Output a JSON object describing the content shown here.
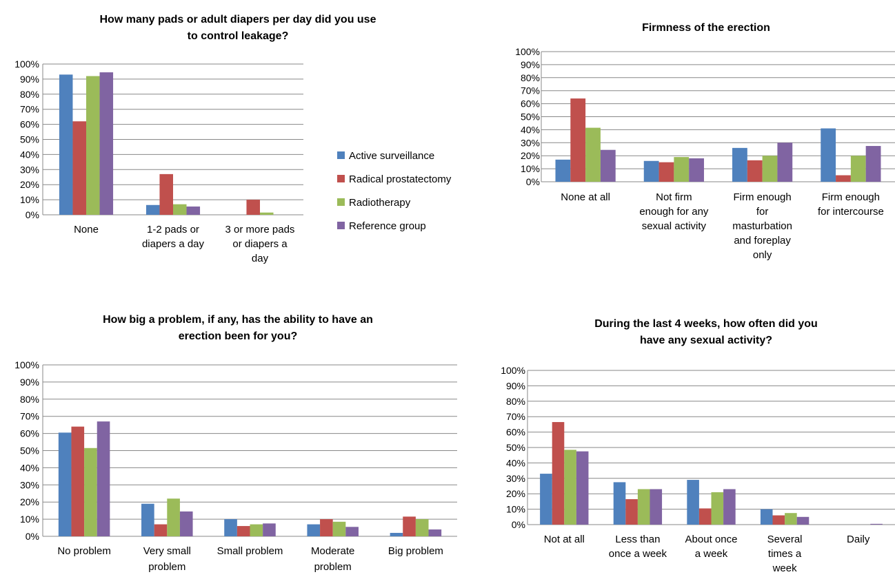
{
  "colors": {
    "active_surveillance": "#4f81bd",
    "radical_prostatectomy": "#c0504d",
    "radiotherapy": "#9bbb59",
    "reference_group": "#8064a2"
  },
  "legend": {
    "placement": "right of top-left chart",
    "items": [
      {
        "label": "Active surveillance",
        "color": "#4f81bd"
      },
      {
        "label": "Radical prostatectomy",
        "color": "#c0504d"
      },
      {
        "label": "Radiotherapy",
        "color": "#9bbb59"
      },
      {
        "label": "Reference group",
        "color": "#8064a2"
      }
    ]
  },
  "chart_data": [
    {
      "type": "bar",
      "title": [
        "How many pads or adult diapers per day did you use",
        "to control leakage?"
      ],
      "xlabel": "",
      "ylabel": "",
      "ylim": [
        0,
        100
      ],
      "yticks": [
        "0%",
        "10%",
        "20%",
        "30%",
        "40%",
        "50%",
        "60%",
        "70%",
        "80%",
        "90%",
        "100%"
      ],
      "grid": true,
      "categories": [
        [
          "None"
        ],
        [
          "1-2 pads or",
          "diapers a day"
        ],
        [
          "3 or more pads",
          "or diapers a",
          "day"
        ]
      ],
      "series": [
        {
          "name": "Active surveillance",
          "values": [
            93,
            6.5,
            0
          ]
        },
        {
          "name": "Radical prostatectomy",
          "values": [
            62,
            27,
            10
          ]
        },
        {
          "name": "Radiotherapy",
          "values": [
            92,
            7,
            1.5
          ]
        },
        {
          "name": "Reference group",
          "values": [
            94.5,
            5.5,
            0
          ]
        }
      ]
    },
    {
      "type": "bar",
      "title": [
        "Firmness of the erection"
      ],
      "xlabel": "",
      "ylabel": "",
      "ylim": [
        0,
        100
      ],
      "yticks": [
        "0%",
        "10%",
        "20%",
        "30%",
        "40%",
        "50%",
        "60%",
        "70%",
        "80%",
        "90%",
        "100%"
      ],
      "grid": true,
      "categories": [
        [
          "None at all"
        ],
        [
          "Not firm",
          "enough for any",
          "sexual activity"
        ],
        [
          "Firm enough",
          "for",
          "masturbation",
          "and foreplay",
          "only"
        ],
        [
          "Firm enough",
          "for intercourse"
        ]
      ],
      "series": [
        {
          "name": "Active surveillance",
          "values": [
            17,
            16,
            26,
            41
          ]
        },
        {
          "name": "Radical prostatectomy",
          "values": [
            64,
            15,
            16.5,
            5
          ]
        },
        {
          "name": "Radiotherapy",
          "values": [
            41.5,
            19,
            20,
            20
          ]
        },
        {
          "name": "Reference group",
          "values": [
            24.5,
            18,
            30,
            27.5
          ]
        }
      ]
    },
    {
      "type": "bar",
      "title": [
        "How big a problem, if any, has the ability to have an",
        "erection been for you?"
      ],
      "xlabel": "",
      "ylabel": "",
      "ylim": [
        0,
        100
      ],
      "yticks": [
        "0%",
        "10%",
        "20%",
        "30%",
        "40%",
        "50%",
        "60%",
        "70%",
        "80%",
        "90%",
        "100%"
      ],
      "grid": true,
      "categories": [
        [
          "No problem"
        ],
        [
          "Very small",
          "problem"
        ],
        [
          "Small problem"
        ],
        [
          "Moderate",
          "problem"
        ],
        [
          "Big problem"
        ]
      ],
      "series": [
        {
          "name": "Active surveillance",
          "values": [
            60.5,
            19,
            10,
            7,
            2
          ]
        },
        {
          "name": "Radical prostatectomy",
          "values": [
            64,
            7,
            6,
            10,
            11.5
          ]
        },
        {
          "name": "Radiotherapy",
          "values": [
            51.5,
            22,
            7,
            8.5,
            10
          ]
        },
        {
          "name": "Reference group",
          "values": [
            67,
            14.5,
            7.5,
            5.5,
            4
          ]
        }
      ]
    },
    {
      "type": "bar",
      "title": [
        "During the last 4 weeks, how often did you",
        "have any sexual activity?"
      ],
      "xlabel": "",
      "ylabel": "",
      "ylim": [
        0,
        100
      ],
      "yticks": [
        "0%",
        "10%",
        "20%",
        "30%",
        "40%",
        "50%",
        "60%",
        "70%",
        "80%",
        "90%",
        "100%"
      ],
      "grid": true,
      "categories": [
        [
          "Not at all"
        ],
        [
          "Less than",
          "once a week"
        ],
        [
          "About once",
          "a week"
        ],
        [
          "Several",
          "times a",
          "week"
        ],
        [
          "Daily"
        ]
      ],
      "series": [
        {
          "name": "Active surveillance",
          "values": [
            33,
            27.5,
            29,
            10,
            0
          ]
        },
        {
          "name": "Radical prostatectomy",
          "values": [
            66.5,
            16.5,
            10.5,
            6,
            0
          ]
        },
        {
          "name": "Radiotherapy",
          "values": [
            48.5,
            23,
            21,
            7.5,
            0
          ]
        },
        {
          "name": "Reference group",
          "values": [
            47.5,
            23,
            23,
            5,
            0.5
          ]
        }
      ]
    }
  ]
}
